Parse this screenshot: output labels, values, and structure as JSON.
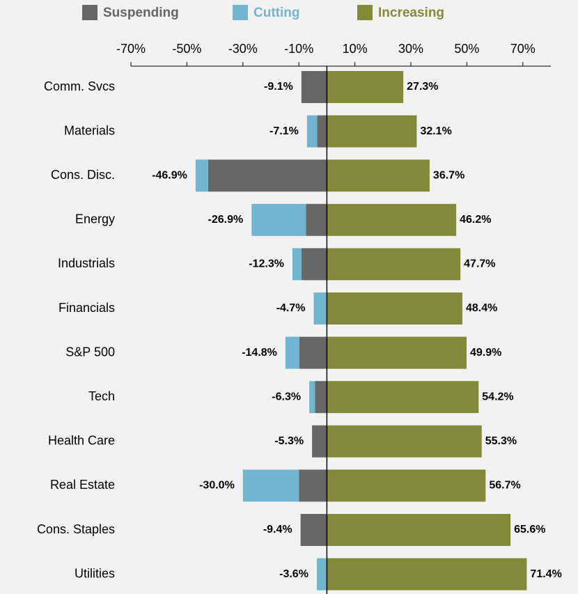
{
  "chart_data": {
    "type": "diverging_stacked_bar",
    "categories": [
      "Comm. Svcs",
      "Materials",
      "Cons. Disc.",
      "Energy",
      "Industrials",
      "Financials",
      "S&P 500",
      "Tech",
      "Health Care",
      "Real Estate",
      "Cons. Staples",
      "Utilities"
    ],
    "series": [
      {
        "name": "Suspending",
        "color": "#666666",
        "values": [
          -9.1,
          -3.5,
          -42.4,
          -7.5,
          -9.1,
          0,
          -9.8,
          -4.2,
          -5.3,
          -10.0,
          -9.4,
          0
        ]
      },
      {
        "name": "Cutting",
        "color": "#72b5d0",
        "values": [
          0,
          -3.6,
          -4.5,
          -19.4,
          -3.2,
          -4.7,
          -5.0,
          -2.1,
          0,
          -20.0,
          0,
          -3.6
        ]
      },
      {
        "name": "Increasing",
        "color": "#84893a",
        "values": [
          27.3,
          32.1,
          36.7,
          46.2,
          47.7,
          48.4,
          49.9,
          54.2,
          55.3,
          56.7,
          65.6,
          71.4
        ],
        "value_labels": [
          "27.3%",
          "32.1%",
          "36.7%",
          "46.2%",
          "47.7%",
          "48.4%",
          "49.9%",
          "54.2%",
          "55.3%",
          "56.7%",
          "65.6%",
          "71.4%"
        ]
      }
    ],
    "net_negative": {
      "values": [
        -9.1,
        -7.1,
        -46.9,
        -26.9,
        -12.3,
        -4.7,
        -14.8,
        -6.3,
        -5.3,
        -30.0,
        -9.4,
        -3.6
      ],
      "value_labels": [
        "-9.1%",
        "-7.1%",
        "-46.9%",
        "-26.9%",
        "-12.3%",
        "-4.7%",
        "-14.8%",
        "-6.3%",
        "-5.3%",
        "-30.0%",
        "-9.4%",
        "-3.6%"
      ]
    },
    "xlim": [
      -70,
      80
    ],
    "xticks": [
      {
        "value": -70,
        "label": "-70%"
      },
      {
        "value": -50,
        "label": "-50%"
      },
      {
        "value": -30,
        "label": "-30%"
      },
      {
        "value": -10,
        "label": "-10%"
      },
      {
        "value": 10,
        "label": "10%"
      },
      {
        "value": 30,
        "label": "30%"
      },
      {
        "value": 50,
        "label": "50%"
      },
      {
        "value": 70,
        "label": "70%"
      }
    ],
    "legend": "top"
  }
}
